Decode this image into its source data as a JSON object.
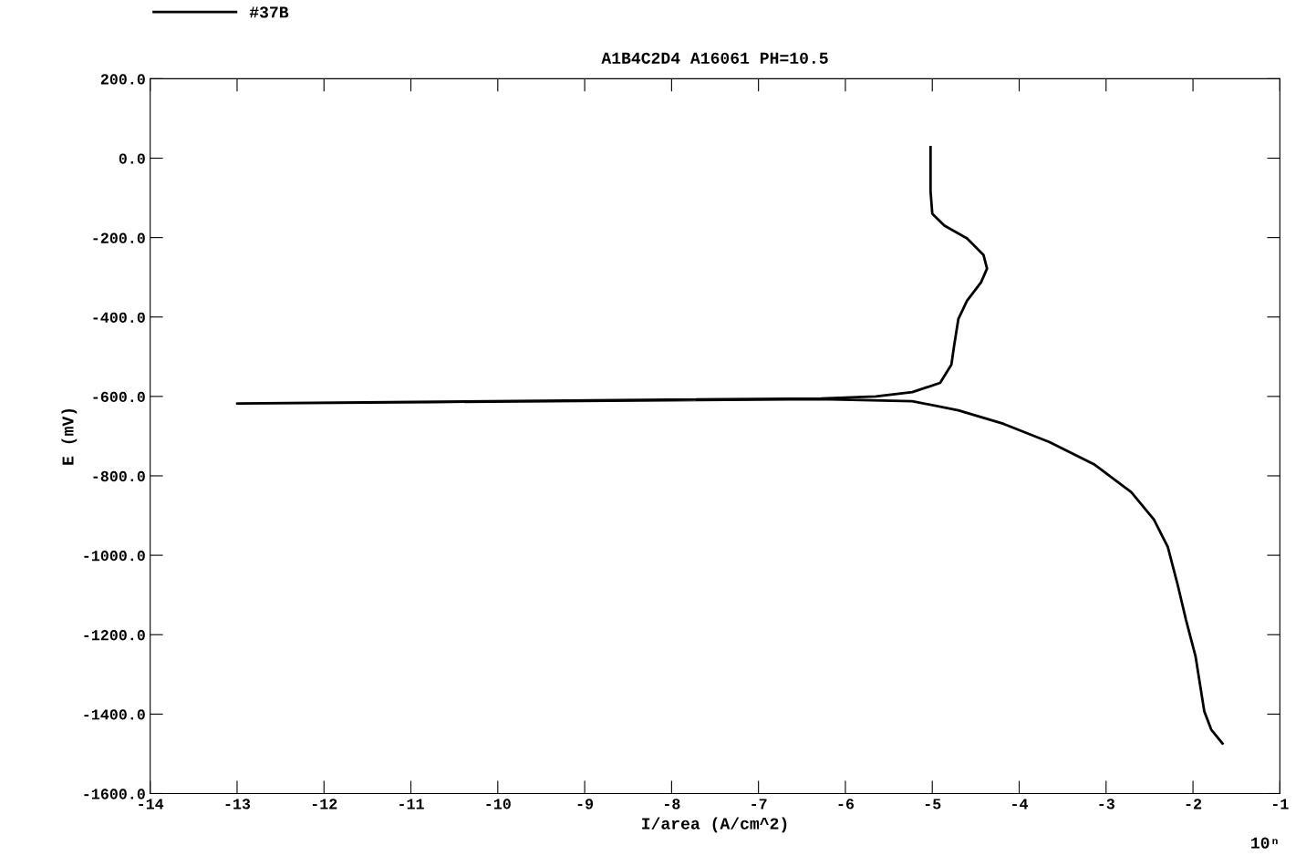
{
  "chart_data": {
    "type": "line",
    "title": "A1B4C2D4 A16061 PH=10.5",
    "xlabel": "I/area (A/cm^2)",
    "ylabel": "E (mV)",
    "annotations": [
      "10ⁿ"
    ],
    "legend": "top left",
    "grid": false,
    "marker": "none",
    "line_style": "solid",
    "xlim": [
      -14,
      -1
    ],
    "xticks": [
      -14,
      -13,
      -12,
      -11,
      -10,
      -9,
      -8,
      -7,
      -6,
      -5,
      -4,
      -3,
      -2,
      -1
    ],
    "ylim": [
      -1600,
      200
    ],
    "yticks": [
      {
        "value": -1600,
        "label": "-1600.0"
      },
      {
        "value": -1400,
        "label": "-1400.0"
      },
      {
        "value": -1200,
        "label": "-1200.0"
      },
      {
        "value": -1000,
        "label": "-1000.0"
      },
      {
        "value": -800,
        "label": "-800.0"
      },
      {
        "value": -600,
        "label": "-600.0"
      },
      {
        "value": -400,
        "label": "-400.0"
      },
      {
        "value": -200,
        "label": "-200.0"
      },
      {
        "value": 0,
        "label": "0.0"
      },
      {
        "value": 200,
        "label": "200.0"
      }
    ],
    "series": [
      {
        "name": "#37B",
        "color": "#000000",
        "x": [
          -1.66,
          -1.79,
          -1.87,
          -1.97,
          -2.08,
          -2.18,
          -2.29,
          -2.45,
          -2.71,
          -3.13,
          -3.65,
          -4.18,
          -4.7,
          -5.23,
          -6.28,
          -13.0,
          -6.28,
          -5.65,
          -5.23,
          -4.91,
          -4.78,
          -4.75,
          -4.7,
          -4.6,
          -4.44,
          -4.37,
          -4.41,
          -4.6,
          -4.86,
          -5.0,
          -5.02,
          -5.02,
          -5.02
        ],
        "values": [
          -1474,
          -1439,
          -1393,
          -1255,
          -1163,
          -1071,
          -979,
          -910,
          -841,
          -772,
          -715,
          -669,
          -635,
          -612,
          -607,
          -618,
          -605,
          -600,
          -589,
          -566,
          -520,
          -474,
          -405,
          -359,
          -313,
          -278,
          -244,
          -202,
          -170,
          -140,
          -83,
          -14,
          28
        ]
      }
    ]
  }
}
